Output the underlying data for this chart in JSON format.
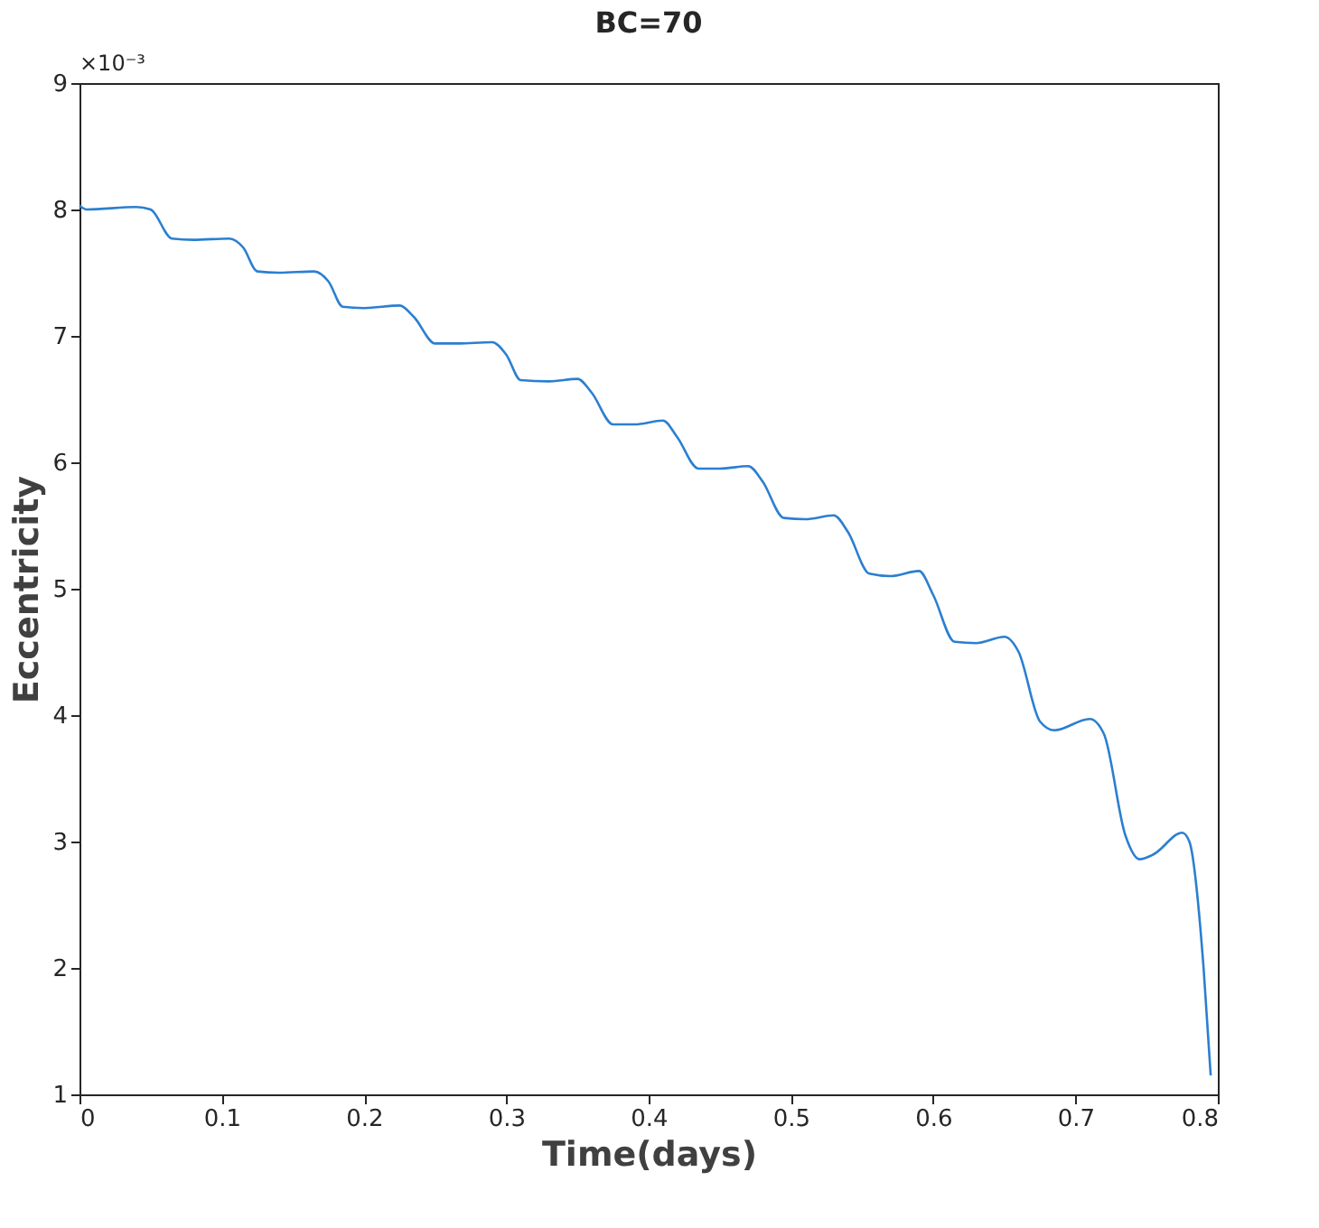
{
  "chart_data": {
    "type": "line",
    "title": "BC=70",
    "xlabel": "Time(days)",
    "ylabel": "Eccentricity",
    "x": [
      0,
      0.005,
      0.04,
      0.05,
      0.065,
      0.08,
      0.105,
      0.115,
      0.125,
      0.14,
      0.165,
      0.175,
      0.185,
      0.2,
      0.225,
      0.235,
      0.25,
      0.265,
      0.29,
      0.3,
      0.31,
      0.33,
      0.35,
      0.36,
      0.375,
      0.39,
      0.41,
      0.42,
      0.435,
      0.45,
      0.47,
      0.48,
      0.495,
      0.51,
      0.53,
      0.54,
      0.555,
      0.57,
      0.59,
      0.6,
      0.615,
      0.63,
      0.65,
      0.66,
      0.675,
      0.685,
      0.71,
      0.72,
      0.735,
      0.745,
      0.755,
      0.775,
      0.78,
      0.79,
      0.795
    ],
    "series": [
      {
        "color": "#2b7fd0",
        "values": [
          8.03,
          8.0,
          8.02,
          8.0,
          7.77,
          7.76,
          7.77,
          7.7,
          7.51,
          7.5,
          7.51,
          7.43,
          7.23,
          7.22,
          7.24,
          7.15,
          6.94,
          6.94,
          6.95,
          6.85,
          6.65,
          6.64,
          6.66,
          6.55,
          6.3,
          6.3,
          6.33,
          6.2,
          5.95,
          5.95,
          5.97,
          5.85,
          5.56,
          5.55,
          5.58,
          5.45,
          5.12,
          5.1,
          5.14,
          4.95,
          4.58,
          4.57,
          4.62,
          4.5,
          3.95,
          3.88,
          3.97,
          3.85,
          3.05,
          2.86,
          2.9,
          3.07,
          3.0,
          2.0,
          1.15
        ]
      }
    ],
    "xlim": [
      0,
      0.8
    ],
    "xticks": [
      0,
      0.1,
      0.2,
      0.3,
      0.4,
      0.5,
      0.6,
      0.7,
      0.8
    ],
    "ylim": [
      1,
      9
    ],
    "yticks": [
      1,
      2,
      3,
      4,
      5,
      6,
      7,
      8,
      9
    ],
    "annotations": [
      "×10⁻³"
    ],
    "grid": false,
    "line_style": "solid",
    "marker": "none"
  }
}
